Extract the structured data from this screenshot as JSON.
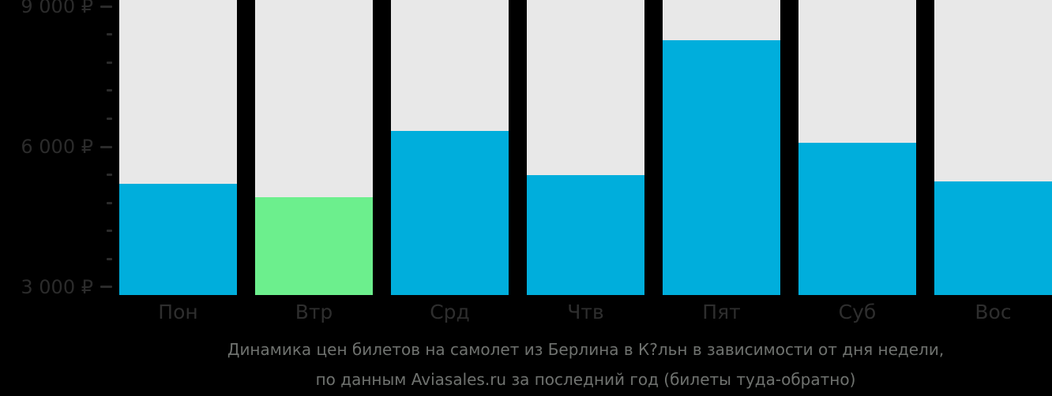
{
  "chart_data": {
    "type": "bar",
    "title": "Динамика цен билетов на самолет из Берлина в К?льн в зависимости от дня недели, по данным Aviasales.ru за последний год (билеты туда-обратно)",
    "title_lines": [
      "Динамика цен билетов на самолет из Берлина в К?льн в зависимости от дня недели,",
      "по данным Aviasales.ru за последний год (билеты туда-обратно)"
    ],
    "categories": [
      "Пон",
      "Втр",
      "Срд",
      "Чтв",
      "Пят",
      "Суб",
      "Вос"
    ],
    "values": [
      5210,
      4920,
      6340,
      5390,
      8280,
      6080,
      5260
    ],
    "highlight_index": 1,
    "xlabel": "",
    "ylabel": "",
    "y_axis": {
      "tick_labels": [
        "9 000 ₽",
        "6 000 ₽",
        "3 000 ₽"
      ],
      "major_ticks": [
        9000,
        6000,
        3000
      ],
      "minor_tick_step": 600,
      "ylim": [
        2830,
        9135
      ]
    },
    "grid": false,
    "legend": "none",
    "colors": {
      "bar_default": "#00AEDC",
      "bar_highlight": "#6CEF8D",
      "bar_background": "#E8E8E8",
      "page_background": "#000000",
      "y_axis_text": "#2B2B2B",
      "x_axis_text": "#2E2E2E",
      "title_text": "#6F726F"
    }
  }
}
